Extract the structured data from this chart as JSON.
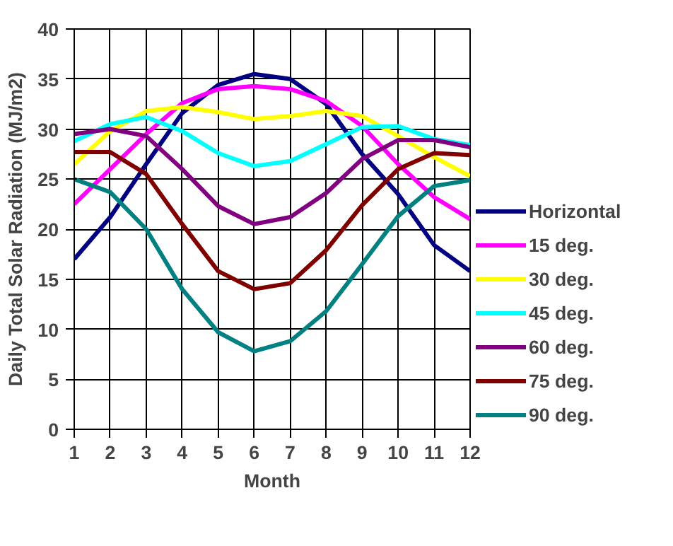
{
  "chart_data": {
    "type": "line",
    "xlabel": "Month",
    "ylabel": "Daily Total Solar Radiation (MJ/m2)",
    "x": [
      1,
      2,
      3,
      4,
      5,
      6,
      7,
      8,
      9,
      10,
      11,
      12
    ],
    "xlim": [
      1,
      12
    ],
    "xticks": [
      1,
      2,
      3,
      4,
      5,
      6,
      7,
      8,
      9,
      10,
      11,
      12
    ],
    "ylim": [
      0,
      40
    ],
    "yticks": [
      0,
      5,
      10,
      15,
      20,
      25,
      30,
      35,
      40
    ],
    "grid": true,
    "legend": "right",
    "marker": "none",
    "line_style": "solid",
    "series": [
      {
        "name": "Horizontal",
        "color": "#000080",
        "values": [
          17,
          21.2,
          26.5,
          31.6,
          34.4,
          35.5,
          35,
          32.5,
          27.5,
          23.5,
          18.4,
          15.8
        ]
      },
      {
        "name": "15 deg.",
        "color": "#ff00ff",
        "values": [
          22.5,
          26,
          29.5,
          32.6,
          34,
          34.3,
          34,
          32.8,
          30.3,
          26.5,
          23.2,
          21
        ]
      },
      {
        "name": "30 deg.",
        "color": "#ffff00",
        "values": [
          26.5,
          29.8,
          31.8,
          32.2,
          31.7,
          31,
          31.3,
          31.8,
          31.3,
          29.3,
          27.2,
          25.3
        ]
      },
      {
        "name": "45 deg.",
        "color": "#00ffff",
        "values": [
          28.8,
          30.5,
          31.2,
          29.8,
          27.6,
          26.3,
          26.8,
          28.5,
          30.2,
          30.3,
          29,
          28.4
        ]
      },
      {
        "name": "60 deg.",
        "color": "#800080",
        "values": [
          29.5,
          30,
          29.3,
          26,
          22.3,
          20.5,
          21.2,
          23.6,
          27,
          28.9,
          28.9,
          28.2
        ]
      },
      {
        "name": "75 deg.",
        "color": "#800000",
        "values": [
          27.7,
          27.7,
          25.5,
          20.5,
          15.8,
          14,
          14.6,
          17.9,
          22.4,
          26,
          27.6,
          27.4
        ]
      },
      {
        "name": "90 deg.",
        "color": "#008080",
        "values": [
          25,
          23.7,
          20,
          14,
          9.7,
          7.8,
          8.8,
          11.8,
          16.5,
          21.3,
          24.3,
          24.9
        ]
      }
    ]
  }
}
